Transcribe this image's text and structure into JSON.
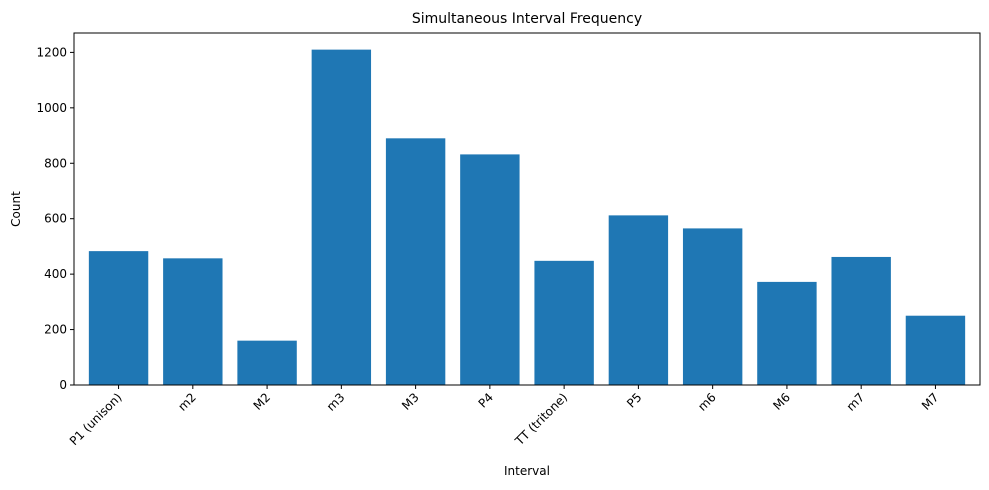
{
  "chart_data": {
    "type": "bar",
    "title": "Simultaneous Interval Frequency",
    "xlabel": "Interval",
    "ylabel": "Count",
    "categories": [
      "P1 (unison)",
      "m2",
      "M2",
      "m3",
      "M3",
      "P4",
      "TT (tritone)",
      "P5",
      "m6",
      "M6",
      "m7",
      "M7"
    ],
    "values": [
      483,
      457,
      160,
      1210,
      890,
      832,
      448,
      612,
      565,
      372,
      462,
      250
    ],
    "ylim": [
      0,
      1270
    ],
    "yticks": [
      0,
      200,
      400,
      600,
      800,
      1000,
      1200
    ],
    "bar_color": "#1f77b4",
    "grid": false,
    "legend": "none"
  }
}
